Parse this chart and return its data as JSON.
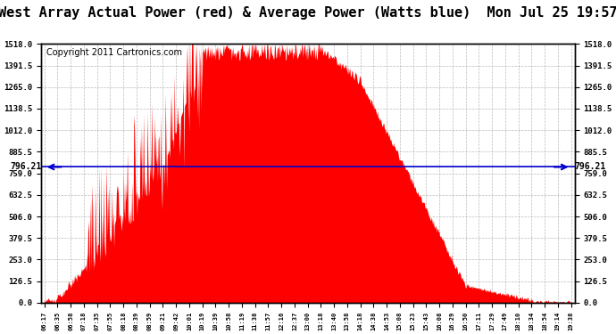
{
  "title": "West Array Actual Power (red) & Average Power (Watts blue)  Mon Jul 25 19:57",
  "copyright": "Copyright 2011 Cartronics.com",
  "avg_power": 796.21,
  "ylim": [
    0,
    1518.0
  ],
  "yticks": [
    0.0,
    126.5,
    253.0,
    379.5,
    506.0,
    632.5,
    759.0,
    885.5,
    1012.0,
    1138.5,
    1265.0,
    1391.5,
    1518.0
  ],
  "x_labels": [
    "06:17",
    "06:35",
    "06:58",
    "07:18",
    "07:35",
    "07:55",
    "08:18",
    "08:39",
    "08:59",
    "09:21",
    "09:42",
    "10:01",
    "10:19",
    "10:39",
    "10:58",
    "11:19",
    "11:38",
    "11:57",
    "12:16",
    "12:37",
    "13:00",
    "13:18",
    "13:40",
    "13:58",
    "14:18",
    "14:38",
    "14:53",
    "15:08",
    "15:23",
    "15:43",
    "16:08",
    "16:29",
    "16:50",
    "17:11",
    "17:29",
    "17:49",
    "18:10",
    "18:34",
    "18:54",
    "19:14",
    "19:38"
  ],
  "bar_color": "#FF0000",
  "avg_line_color": "#0000CC",
  "background_color": "#FFFFFF",
  "grid_color": "#AAAAAA",
  "title_fontsize": 11,
  "copyright_fontsize": 7,
  "n_total": 820
}
